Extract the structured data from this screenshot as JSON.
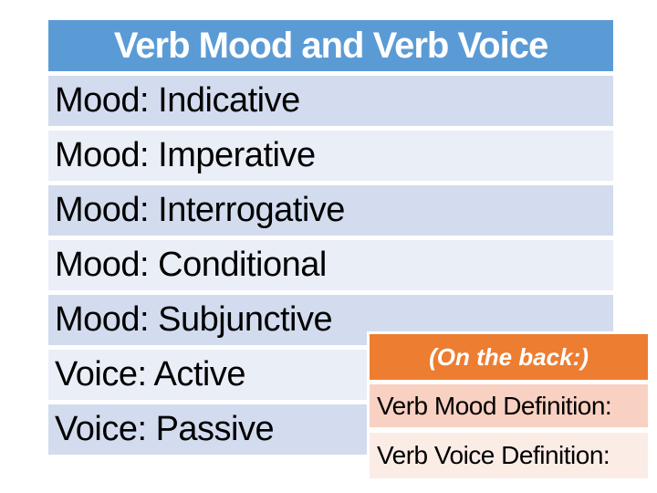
{
  "slide": {
    "title": "Verb Mood and Verb Voice",
    "rows": [
      "Mood: Indicative",
      "Mood: Imperative",
      "Mood: Interrogative",
      "Mood: Conditional",
      "Mood: Subjunctive",
      "Voice: Active",
      "Voice: Passive"
    ],
    "note_table": {
      "header": "(On the back:)",
      "rows": [
        "Verb Mood Definition:",
        "Verb Voice Definition:"
      ]
    },
    "colors": {
      "header_blue": "#5b9bd5",
      "band_dark_blue": "#d2dcee",
      "band_light_blue": "#eaeef7",
      "header_orange": "#ed7d31",
      "band_dark_peach": "#f8d1c2",
      "band_light_peach": "#fcece6",
      "title_text": "#ffffff",
      "body_text": "#000000"
    }
  }
}
